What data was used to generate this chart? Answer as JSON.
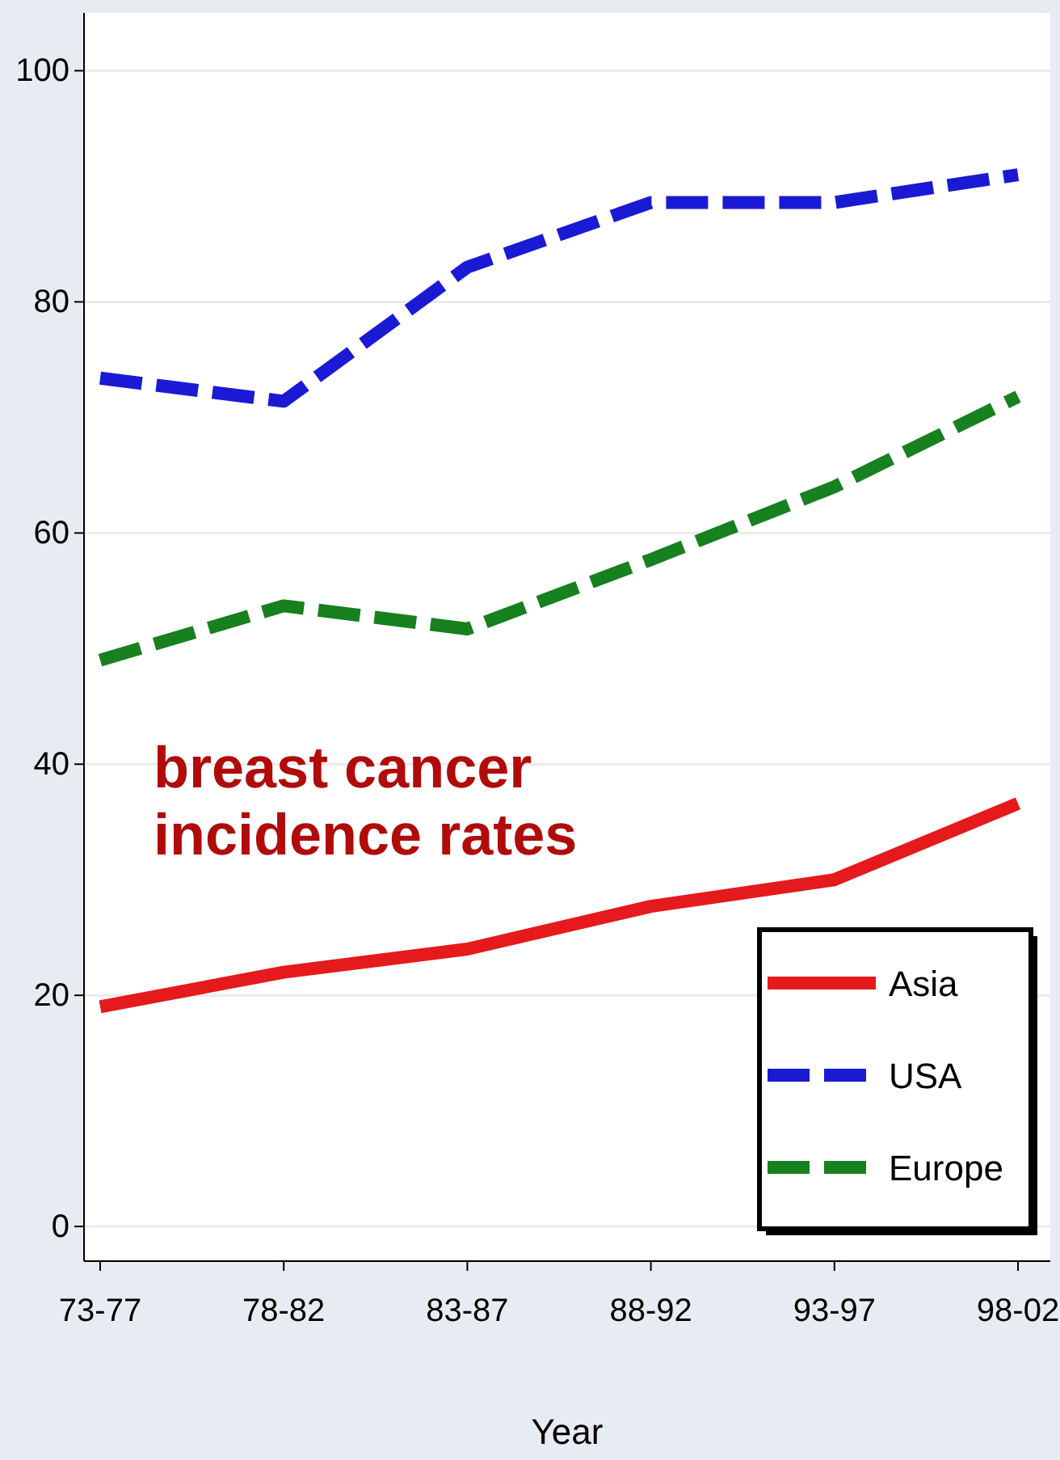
{
  "chart_data": {
    "type": "line",
    "xlabel": "Year",
    "categories": [
      "73-77",
      "78-82",
      "83-87",
      "88-92",
      "93-97",
      "98-02"
    ],
    "series": [
      {
        "name": "Asia",
        "color": "#e41a1c",
        "values": [
          19,
          22,
          24,
          27.7,
          30,
          36.6
        ],
        "line_style": "solid"
      },
      {
        "name": "USA",
        "color": "#1a1ad4",
        "values": [
          73.4,
          71.4,
          83,
          88.6,
          88.6,
          91
        ],
        "line_style": "dashed"
      },
      {
        "name": "Europe",
        "color": "#17801f",
        "values": [
          49,
          53.7,
          51.7,
          57.7,
          64,
          71.8
        ],
        "line_style": "dashed"
      }
    ],
    "ylim": [
      -3,
      105
    ],
    "yticks": [
      0,
      20,
      40,
      60,
      80,
      100
    ],
    "grid": "y",
    "legend": "bottom right",
    "marker": "none",
    "annotations": [
      "breast cancer incidence rates"
    ]
  }
}
